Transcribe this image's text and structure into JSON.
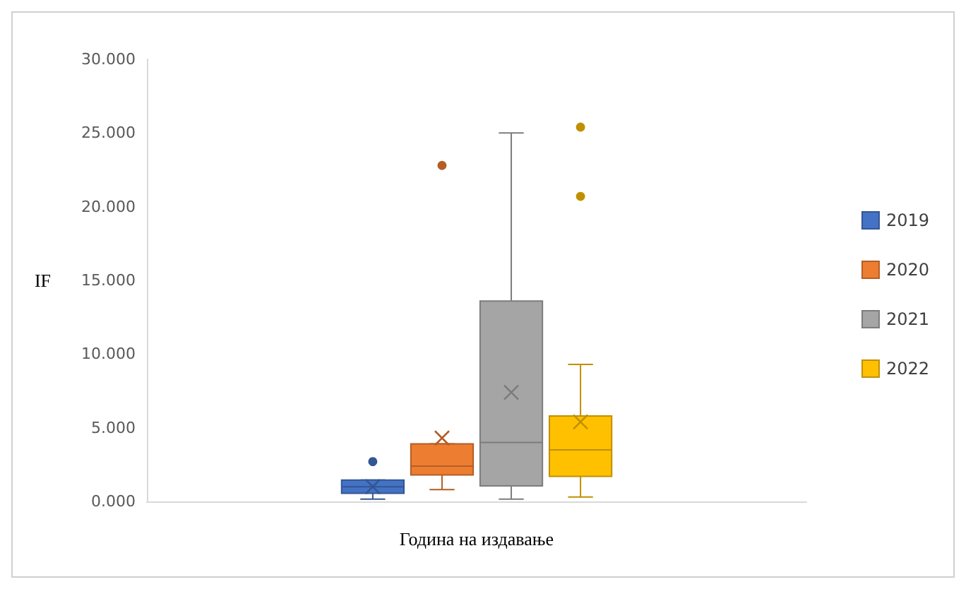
{
  "chart_data": {
    "type": "box",
    "categories": [
      null
    ],
    "xlabel": "Година на издавање",
    "ylabel": "IF",
    "ylim": [
      0,
      30
    ],
    "yticks": [
      {
        "value": 0,
        "label": "0.000"
      },
      {
        "value": 5,
        "label": "5.000"
      },
      {
        "value": 10,
        "label": "10.000"
      },
      {
        "value": 15,
        "label": "15.000"
      },
      {
        "value": 20,
        "label": "20.000"
      },
      {
        "value": 25,
        "label": "25.000"
      },
      {
        "value": 30,
        "label": "30.000"
      }
    ],
    "grid": false,
    "legend": "right",
    "series": [
      {
        "name": "2019",
        "color": "#4472c4",
        "boxes": [
          {
            "low": 0.15,
            "q1": 0.55,
            "median": 1.0,
            "q3": 1.45,
            "high": 1.45,
            "mean": 1.0,
            "outliers": [
              2.7
            ]
          }
        ]
      },
      {
        "name": "2020",
        "color": "#ed7d31",
        "boxes": [
          {
            "low": 0.8,
            "q1": 1.8,
            "median": 2.4,
            "q3": 3.9,
            "high": 3.9,
            "mean": 4.3,
            "outliers": [
              22.8
            ]
          }
        ]
      },
      {
        "name": "2021",
        "color": "#a5a5a5",
        "boxes": [
          {
            "low": 0.15,
            "q1": 1.05,
            "median": 4.0,
            "q3": 13.6,
            "high": 25.0,
            "mean": 7.4
          }
        ]
      },
      {
        "name": "2022",
        "color": "#ffc000",
        "boxes": [
          {
            "low": 0.3,
            "q1": 1.7,
            "median": 3.5,
            "q3": 5.8,
            "high": 9.3,
            "mean": 5.4,
            "outliers": [
              25.4,
              20.7
            ]
          }
        ]
      }
    ]
  }
}
